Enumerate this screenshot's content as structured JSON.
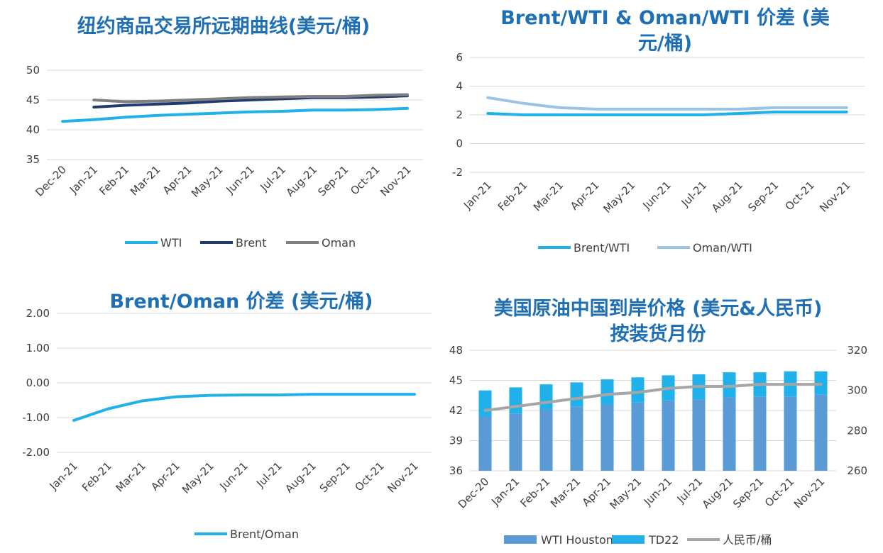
{
  "palette": {
    "wti": "#20b0ea",
    "brent": "#1f3a6e",
    "oman": "#7f7f7f",
    "oman_wti": "#9cc3e5",
    "wti_houston": "#5b9bd5",
    "td22": "#20b0ea",
    "rmb": "#a6a6a6",
    "title": "#1f6fb5",
    "grid": "#d9d9d9"
  },
  "chart_data": [
    {
      "id": "forward-curve",
      "type": "line",
      "title": "纽约商品交易所远期曲线(美元/桶)",
      "categories": [
        "Dec-20",
        "Jan-21",
        "Feb-21",
        "Mar-21",
        "Apr-21",
        "May-21",
        "Jun-21",
        "Jul-21",
        "Aug-21",
        "Sep-21",
        "Oct-21",
        "Nov-21"
      ],
      "ylim": [
        35,
        50
      ],
      "yticks": [
        "50",
        "45",
        "40",
        "35"
      ],
      "series": [
        {
          "name": "WTI",
          "color_key": "wti",
          "values": [
            41.4,
            41.7,
            42.1,
            42.4,
            42.6,
            42.8,
            43.0,
            43.1,
            43.3,
            43.3,
            43.4,
            43.6
          ]
        },
        {
          "name": "Brent",
          "color_key": "brent",
          "values": [
            null,
            43.8,
            44.1,
            44.3,
            44.5,
            44.8,
            45.0,
            45.2,
            45.4,
            45.4,
            45.5,
            45.7
          ]
        },
        {
          "name": "Oman",
          "color_key": "oman",
          "values": [
            null,
            45.0,
            44.7,
            44.8,
            45.0,
            45.2,
            45.4,
            45.5,
            45.6,
            45.6,
            45.8,
            45.9
          ]
        }
      ],
      "legend": "bottom"
    },
    {
      "id": "brent-oman-wti-spread",
      "type": "line",
      "title": "Brent/WTI & Oman/WTI 价差 (美元/桶)",
      "categories": [
        "Jan-21",
        "Feb-21",
        "Mar-21",
        "Apr-21",
        "May-21",
        "Jun-21",
        "Jul-21",
        "Aug-21",
        "Sep-21",
        "Oct-21",
        "Nov-21"
      ],
      "ylim": [
        -2,
        6
      ],
      "yticks": [
        "6",
        "4",
        "2",
        "0",
        "-2"
      ],
      "series": [
        {
          "name": "Brent/WTI",
          "color_key": "wti",
          "values": [
            2.1,
            2.0,
            2.0,
            2.0,
            2.0,
            2.0,
            2.0,
            2.1,
            2.2,
            2.2,
            2.2
          ]
        },
        {
          "name": "Oman/WTI",
          "color_key": "oman_wti",
          "values": [
            3.2,
            2.8,
            2.5,
            2.4,
            2.4,
            2.4,
            2.4,
            2.4,
            2.5,
            2.5,
            2.5
          ]
        }
      ],
      "legend": "bottom"
    },
    {
      "id": "brent-oman-spread",
      "type": "line",
      "title": "Brent/Oman 价差 (美元/桶)",
      "categories": [
        "Jan-21",
        "Feb-21",
        "Mar-21",
        "Apr-21",
        "May-21",
        "Jun-21",
        "Jul-21",
        "Aug-21",
        "Sep-21",
        "Oct-21",
        "Nov-21"
      ],
      "ylim": [
        -2,
        2
      ],
      "yticks": [
        "2.00",
        "1.00",
        "0.00",
        "-1.00",
        "-2.00"
      ],
      "series": [
        {
          "name": "Brent/Oman",
          "color_key": "wti",
          "values": [
            -1.08,
            -0.75,
            -0.52,
            -0.4,
            -0.36,
            -0.35,
            -0.35,
            -0.33,
            -0.33,
            -0.33,
            -0.33
          ]
        }
      ],
      "legend": "bottom"
    },
    {
      "id": "us-crude-china-landed",
      "type": "bar",
      "title": "美国原油中国到岸价格 (美元&人民币) 按装货月份",
      "categories": [
        "Dec-20",
        "Jan-21",
        "Feb-21",
        "Mar-21",
        "Apr-21",
        "May-21",
        "Jun-21",
        "Jul-21",
        "Aug-21",
        "Sep-21",
        "Oct-21",
        "Nov-21"
      ],
      "ylim": [
        36,
        48
      ],
      "yticks": [
        "48",
        "45",
        "42",
        "39",
        "36"
      ],
      "y2lim": [
        260,
        320
      ],
      "y2ticks": [
        "320",
        "300",
        "280",
        "260"
      ],
      "series": [
        {
          "name": "WTI Houston",
          "color_key": "wti_houston",
          "stacked": true,
          "values": [
            41.4,
            41.7,
            42.1,
            42.4,
            42.6,
            42.8,
            43.0,
            43.1,
            43.3,
            43.4,
            43.4,
            43.6
          ]
        },
        {
          "name": "TD22",
          "color_key": "td22",
          "stacked": true,
          "values": [
            2.6,
            2.6,
            2.5,
            2.4,
            2.5,
            2.5,
            2.5,
            2.5,
            2.5,
            2.4,
            2.5,
            2.3
          ]
        },
        {
          "name": "人民币/桶",
          "color_key": "rmb",
          "axis": "right",
          "values": [
            290,
            292,
            294,
            296,
            298,
            299,
            301,
            302,
            302,
            303,
            303,
            303
          ]
        }
      ],
      "legend": "bottom"
    }
  ]
}
